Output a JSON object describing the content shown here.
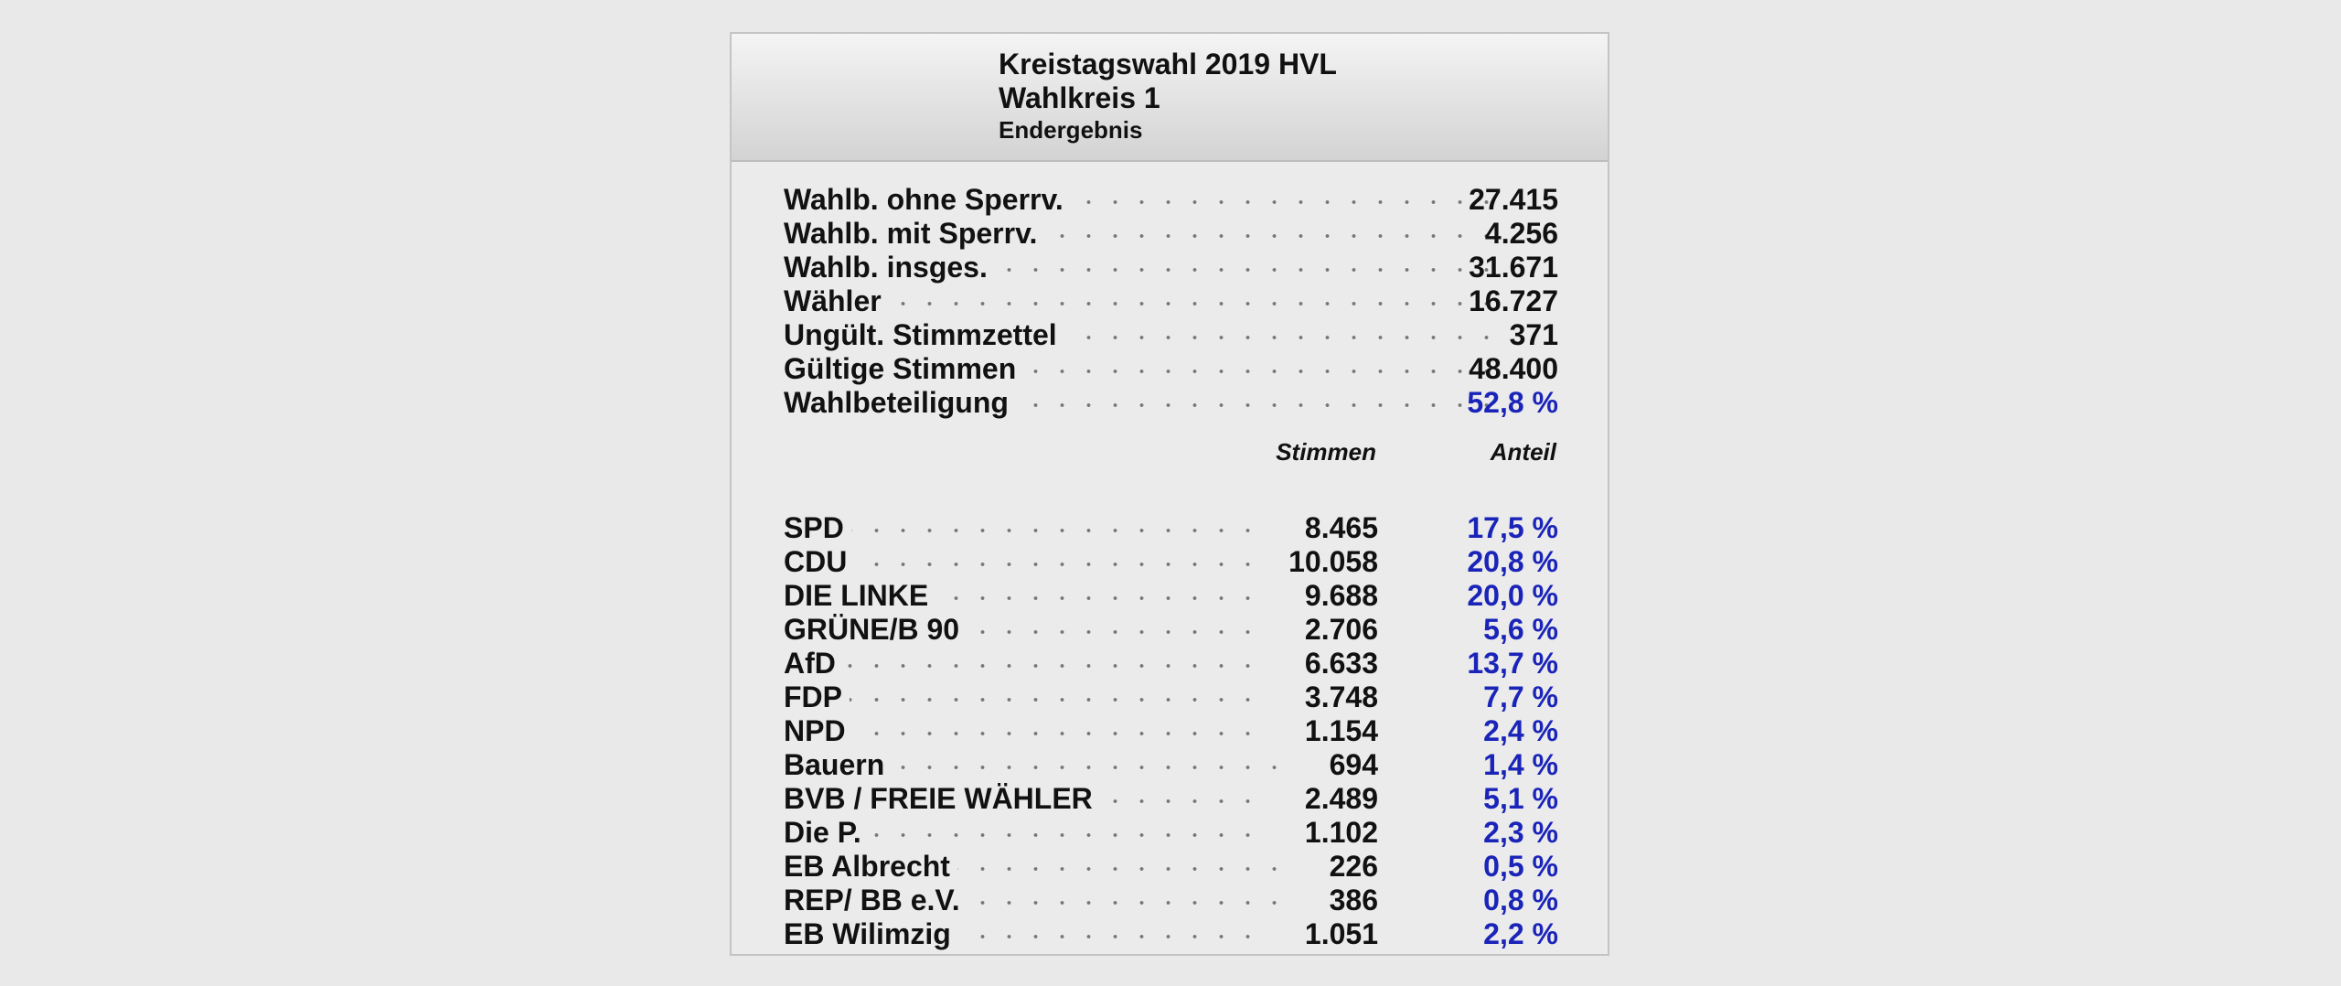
{
  "header": {
    "title": "Kreistagswahl 2019 HVL",
    "subtitle": "Wahlkreis 1",
    "status": "Endergebnis"
  },
  "summary": [
    {
      "label": "Wahlb. ohne Sperrv.",
      "value": "27.415"
    },
    {
      "label": "Wahlb. mit Sperrv.",
      "value": "4.256"
    },
    {
      "label": "Wahlb. insges.",
      "value": "31.671"
    },
    {
      "label": "Wähler",
      "value": "16.727"
    },
    {
      "label": "Ungült. Stimmzettel",
      "value": "371"
    },
    {
      "label": "Gültige Stimmen",
      "value": "48.400"
    },
    {
      "label": "Wahlbeteiligung",
      "value": "52,8 %"
    }
  ],
  "columns": {
    "votes": "Stimmen",
    "share": "Anteil"
  },
  "parties": [
    {
      "name": "SPD",
      "votes": "8.465",
      "share": "17,5 %"
    },
    {
      "name": "CDU",
      "votes": "10.058",
      "share": "20,8 %"
    },
    {
      "name": "DIE LINKE",
      "votes": "9.688",
      "share": "20,0 %"
    },
    {
      "name": "GRÜNE/B 90",
      "votes": "2.706",
      "share": "5,6 %"
    },
    {
      "name": "AfD",
      "votes": "6.633",
      "share": "13,7 %"
    },
    {
      "name": "FDP",
      "votes": "3.748",
      "share": "7,7 %"
    },
    {
      "name": "NPD",
      "votes": "1.154",
      "share": "2,4 %"
    },
    {
      "name": "Bauern",
      "votes": "694",
      "share": "1,4 %"
    },
    {
      "name": "BVB / FREIE WÄHLER",
      "votes": "2.489",
      "share": "5,1 %"
    },
    {
      "name": "Die P.",
      "votes": "1.102",
      "share": "2,3 %"
    },
    {
      "name": "EB Albrecht",
      "votes": "226",
      "share": "0,5 %"
    },
    {
      "name": "REP/ BB e.V.",
      "votes": "386",
      "share": "0,8 %"
    },
    {
      "name": "EB Wilimzig",
      "votes": "1.051",
      "share": "2,2 %"
    }
  ],
  "colors": {
    "percent": "#1a24b8",
    "background": "#e9e9e9"
  }
}
